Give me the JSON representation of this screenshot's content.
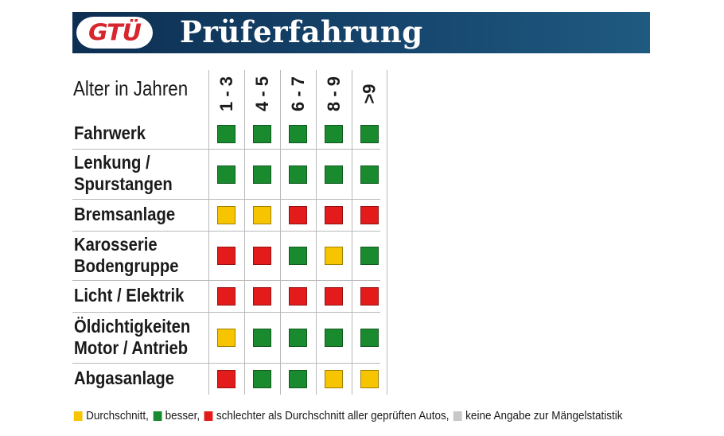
{
  "header": {
    "logo_text": "GTÜ",
    "title": "Prüferfahrung"
  },
  "colors": {
    "durchschnitt": "#f6c500",
    "besser": "#1a8a2e",
    "schlechter": "#e31b1b",
    "keine_angabe": "#c8c8c8",
    "header_bg": "#16456d",
    "logo_red": "#d8262f"
  },
  "chart_data": {
    "type": "table",
    "column_header_label": "Alter in Jahren",
    "columns": [
      "1 - 3",
      "4 - 5",
      "6 - 7",
      "8 - 9",
      ">9"
    ],
    "rows": [
      {
        "label": "Fahrwerk",
        "values": [
          "besser",
          "besser",
          "besser",
          "besser",
          "besser"
        ]
      },
      {
        "label": "Lenkung /\nSpurstangen",
        "values": [
          "besser",
          "besser",
          "besser",
          "besser",
          "besser"
        ]
      },
      {
        "label": "Bremsanlage",
        "values": [
          "durchschnitt",
          "durchschnitt",
          "schlechter",
          "schlechter",
          "schlechter"
        ]
      },
      {
        "label": "Karosserie\nBodengruppe",
        "values": [
          "schlechter",
          "schlechter",
          "besser",
          "durchschnitt",
          "besser"
        ]
      },
      {
        "label": "Licht / Elektrik",
        "values": [
          "schlechter",
          "schlechter",
          "schlechter",
          "schlechter",
          "schlechter"
        ]
      },
      {
        "label": "Öldichtigkeiten\nMotor / Antrieb",
        "values": [
          "durchschnitt",
          "besser",
          "besser",
          "besser",
          "besser"
        ]
      },
      {
        "label": "Abgasanlage",
        "values": [
          "schlechter",
          "besser",
          "besser",
          "durchschnitt",
          "durchschnitt"
        ]
      }
    ],
    "legend": [
      {
        "key": "durchschnitt",
        "label": "Durchschnitt,"
      },
      {
        "key": "besser",
        "label": "besser,"
      },
      {
        "key": "schlechter",
        "label": "schlechter als Durchschnitt aller geprüften Autos,"
      },
      {
        "key": "keine_angabe",
        "label": "keine Angabe zur Mängelstatistik"
      }
    ]
  }
}
